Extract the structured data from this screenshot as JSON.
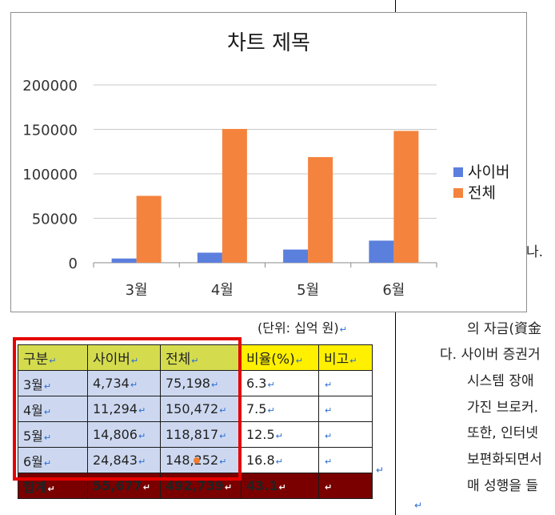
{
  "chart_data": {
    "type": "bar",
    "title": "차트 제목",
    "categories": [
      "3월",
      "4월",
      "5월",
      "6월"
    ],
    "series": [
      {
        "name": "사이버",
        "values": [
          4734,
          11294,
          14806,
          24843
        ],
        "color": "#5b7fdc"
      },
      {
        "name": "전체",
        "values": [
          75198,
          150472,
          118817,
          148252
        ],
        "color": "#f4833d"
      }
    ],
    "ylim": [
      0,
      200000
    ],
    "yticks": [
      "0",
      "50000",
      "100000",
      "150000",
      "200000"
    ],
    "grid": true,
    "legend": "right"
  },
  "unit_note": "(단위: 십억 원)",
  "table": {
    "headers": [
      "구분",
      "사이버",
      "전체",
      "비율(%)",
      "비고"
    ],
    "rows": [
      [
        "3월",
        "4,734",
        "75,198",
        "6.3",
        ""
      ],
      [
        "4월",
        "11,294",
        "150,472",
        "7.5",
        ""
      ],
      [
        "5월",
        "14,806",
        "118,817",
        "12.5",
        ""
      ],
      [
        "6월",
        "24,843",
        "148,252",
        "16.8",
        ""
      ]
    ],
    "total": [
      "합계",
      "55,677",
      "492,739",
      "43.1",
      ""
    ]
  },
  "right_text": [
    "나.",
    "의 자금(資金",
    "다. 사이버 증권거",
    "시스템 장애",
    "가진 브로커.",
    "또한, 인터넷",
    "보편화되면서",
    "매 성행을 들"
  ],
  "paragraph_mark": "↵"
}
